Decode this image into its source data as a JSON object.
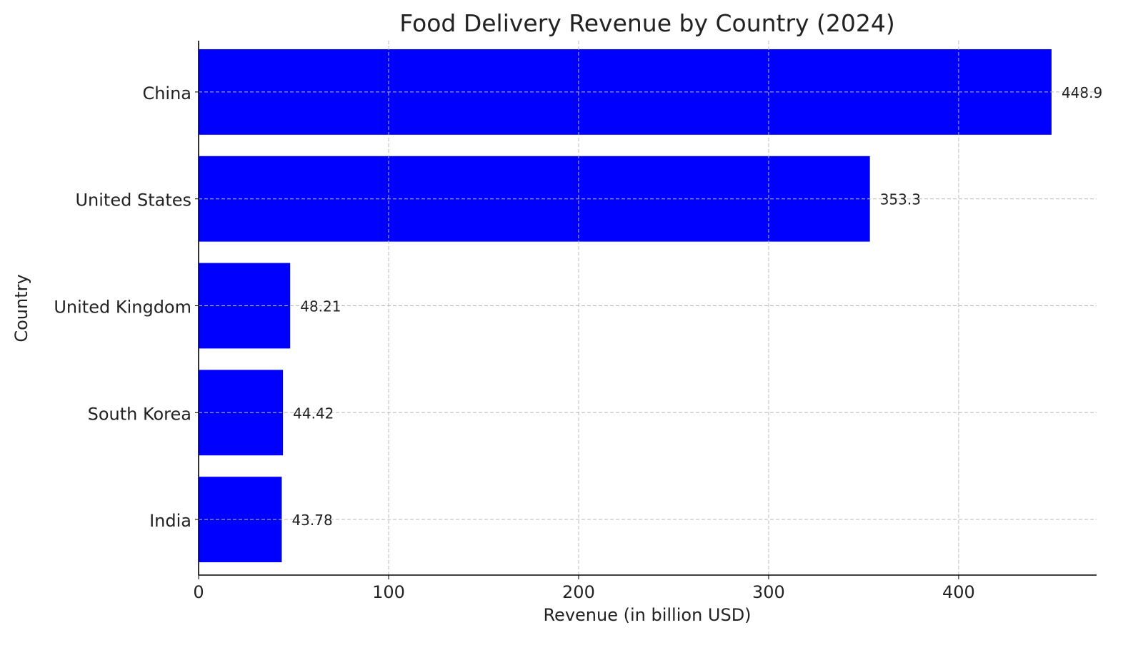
{
  "chart_data": {
    "type": "bar",
    "orientation": "horizontal",
    "title": "Food Delivery Revenue by Country (2024)",
    "xlabel": "Revenue (in billion USD)",
    "ylabel": "Country",
    "categories": [
      "China",
      "United States",
      "United Kingdom",
      "South Korea",
      "India"
    ],
    "values": [
      448.9,
      353.3,
      48.21,
      44.42,
      43.78
    ],
    "data_labels": [
      "448.9",
      "353.3",
      "48.21",
      "44.42",
      "43.78"
    ],
    "xlim": [
      0,
      472.6
    ],
    "xticks": [
      0,
      100,
      200,
      300,
      400
    ],
    "xtick_labels": [
      "0",
      "100",
      "200",
      "300",
      "400"
    ],
    "grid": true,
    "bar_color": "#0000ff"
  }
}
